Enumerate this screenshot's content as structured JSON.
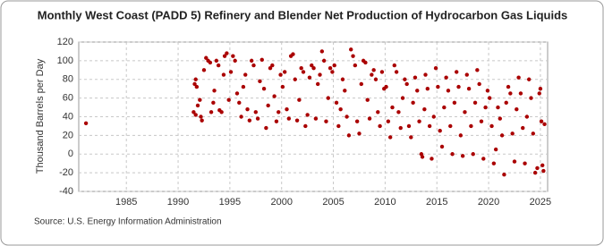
{
  "chart_data": {
    "type": "scatter",
    "title": "Monthly West Coast (PADD 5) Refinery and Blender Net Production of Hydrocarbon Gas Liquids",
    "ylabel": "Thousand Barrels per Day",
    "source": "Source: U.S. Energy Information Administration",
    "color": "#aa0000",
    "grid": true,
    "xlim": [
      1980.4,
      2025.7
    ],
    "ylim": [
      -40,
      120
    ],
    "xticks": [
      1985,
      1990,
      1995,
      2000,
      2005,
      2010,
      2015,
      2020,
      2025
    ],
    "yticks": [
      -40,
      -20,
      0,
      20,
      40,
      60,
      80,
      100,
      120
    ],
    "x": [
      1981.1,
      1991.5,
      1991.6,
      1991.7,
      1991.8,
      1991.9,
      1991.7,
      1992.1,
      1992.2,
      1992.3,
      1992.5,
      1992.7,
      1992.9,
      1993.1,
      1993.2,
      1993.4,
      1993.5,
      1993.7,
      1993.9,
      1994.0,
      1994.2,
      1994.4,
      1994.5,
      1994.7,
      1994.9,
      1995.1,
      1995.3,
      1995.5,
      1995.7,
      1995.9,
      1996.1,
      1996.3,
      1996.5,
      1996.7,
      1996.9,
      1997.1,
      1997.3,
      1997.5,
      1997.7,
      1997.9,
      1998.1,
      1998.3,
      1998.5,
      1998.7,
      1998.9,
      1999.1,
      1999.3,
      1999.5,
      1999.7,
      1999.9,
      2000.1,
      2000.3,
      2000.5,
      2000.7,
      2000.9,
      2001.1,
      2001.3,
      2001.5,
      2001.7,
      2001.9,
      2002.1,
      2002.3,
      2002.5,
      2002.7,
      2002.9,
      2003.1,
      2003.3,
      2003.5,
      2003.7,
      2003.9,
      2004.1,
      2004.3,
      2004.5,
      2004.7,
      2004.9,
      2005.1,
      2005.3,
      2005.5,
      2005.7,
      2005.9,
      2006.1,
      2006.3,
      2006.5,
      2006.7,
      2006.9,
      2007.1,
      2007.3,
      2007.5,
      2007.7,
      2007.9,
      2008.1,
      2008.3,
      2008.5,
      2008.7,
      2008.9,
      2009.1,
      2009.3,
      2009.5,
      2009.7,
      2009.9,
      2010.1,
      2010.3,
      2010.5,
      2010.7,
      2010.9,
      2011.1,
      2011.3,
      2011.5,
      2011.7,
      2011.9,
      2012.1,
      2012.3,
      2012.5,
      2012.7,
      2012.9,
      2013.1,
      2013.3,
      2013.5,
      2013.6,
      2013.8,
      2013.9,
      2014.1,
      2014.3,
      2014.5,
      2014.7,
      2014.9,
      2015.1,
      2015.3,
      2015.5,
      2015.7,
      2015.9,
      2016.1,
      2016.3,
      2016.5,
      2016.7,
      2016.9,
      2017.1,
      2017.3,
      2017.5,
      2017.7,
      2017.9,
      2018.1,
      2018.3,
      2018.5,
      2018.7,
      2018.9,
      2019.1,
      2019.3,
      2019.5,
      2019.7,
      2019.9,
      2020.1,
      2020.3,
      2020.5,
      2020.7,
      2020.9,
      2021.1,
      2021.3,
      2021.5,
      2021.7,
      2021.9,
      2022.1,
      2022.3,
      2022.5,
      2022.7,
      2022.9,
      2023.1,
      2023.3,
      2023.5,
      2023.7,
      2023.9,
      2024.1,
      2024.3,
      2024.5,
      2024.7,
      2024.9,
      2025.0,
      2025.1,
      2025.2,
      2025.3,
      2025.4
    ],
    "values": [
      33,
      45,
      75,
      80,
      72,
      52,
      42,
      58,
      40,
      36,
      90,
      103,
      100,
      98,
      45,
      55,
      68,
      100,
      95,
      47,
      45,
      85,
      105,
      108,
      58,
      88,
      105,
      100,
      65,
      55,
      40,
      72,
      85,
      48,
      36,
      100,
      95,
      45,
      38,
      78,
      101,
      70,
      28,
      52,
      92,
      95,
      62,
      35,
      45,
      85,
      72,
      88,
      48,
      38,
      105,
      107,
      80,
      36,
      58,
      92,
      88,
      30,
      42,
      82,
      95,
      92,
      38,
      75,
      85,
      110,
      100,
      35,
      60,
      92,
      88,
      95,
      55,
      30,
      48,
      80,
      68,
      40,
      20,
      112,
      105,
      95,
      35,
      22,
      75,
      100,
      98,
      58,
      38,
      85,
      90,
      80,
      45,
      30,
      88,
      70,
      72,
      35,
      18,
      50,
      95,
      88,
      45,
      28,
      60,
      80,
      75,
      30,
      18,
      55,
      82,
      68,
      35,
      0,
      -3,
      48,
      85,
      70,
      30,
      -5,
      40,
      92,
      72,
      25,
      8,
      50,
      82,
      68,
      30,
      0,
      55,
      88,
      72,
      20,
      -2,
      45,
      85,
      70,
      30,
      0,
      55,
      90,
      75,
      35,
      -5,
      50,
      68,
      60,
      30,
      -10,
      5,
      50,
      38,
      20,
      -22,
      55,
      72,
      65,
      22,
      -8,
      48,
      82,
      65,
      28,
      -10,
      40,
      80,
      60,
      22,
      -20,
      -15,
      65,
      70,
      35,
      -12,
      -18,
      32
    ]
  }
}
